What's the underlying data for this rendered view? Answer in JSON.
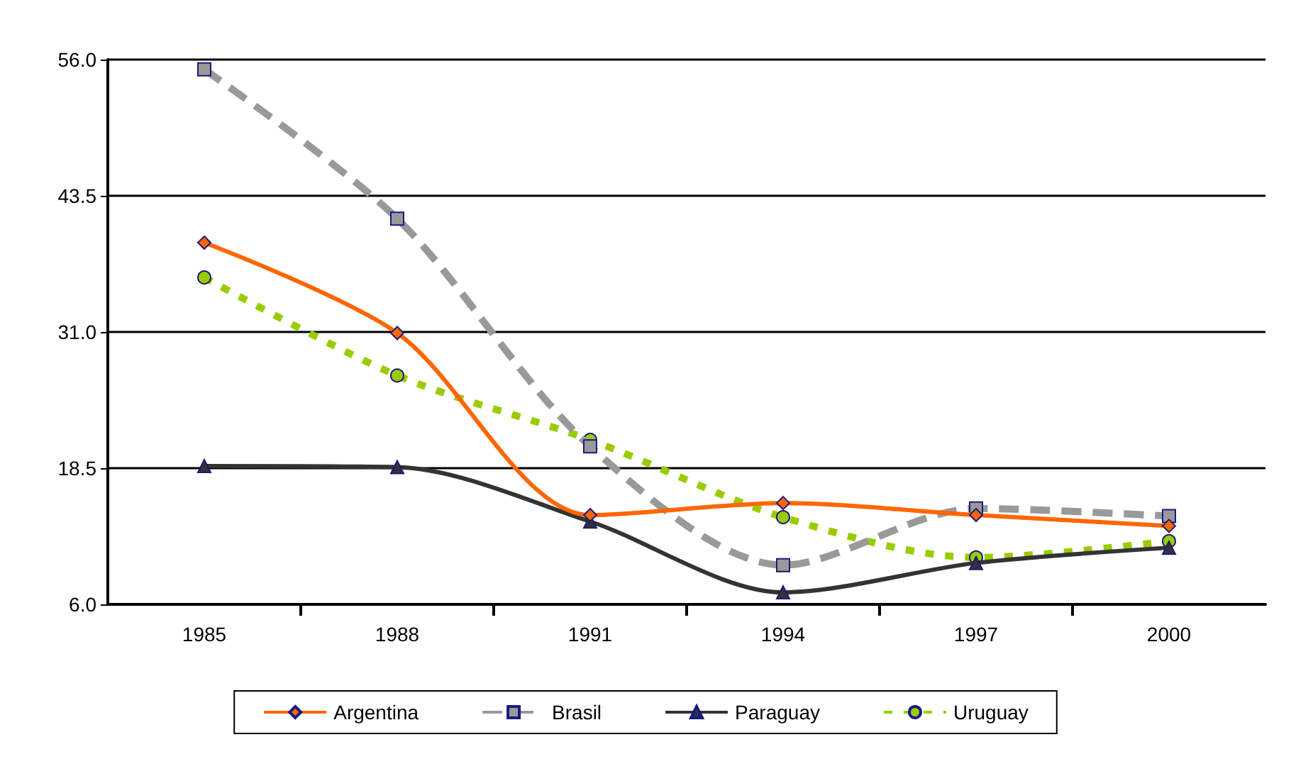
{
  "chart_data": {
    "type": "line",
    "x": [
      1985,
      1988,
      1991,
      1994,
      1997,
      2000
    ],
    "series": [
      {
        "name": "Argentina",
        "color": "#ff6600",
        "marker": "diamond",
        "line_style": "solid",
        "values": [
          39.2,
          30.9,
          14.2,
          15.3,
          14.2,
          13.2
        ]
      },
      {
        "name": "Brasil",
        "color": "#999999",
        "marker": "square",
        "line_style": "dashed",
        "values": [
          55.1,
          41.4,
          20.5,
          9.6,
          14.8,
          14.1
        ]
      },
      {
        "name": "Paraguay",
        "color": "#333333",
        "marker": "triangle",
        "line_style": "solid",
        "values": [
          18.7,
          18.6,
          13.6,
          7.1,
          9.8,
          11.2
        ]
      },
      {
        "name": "Uruguay",
        "color": "#99cc00",
        "marker": "circle",
        "line_style": "dotted",
        "values": [
          36.0,
          27.0,
          21.1,
          14.0,
          10.3,
          11.8
        ]
      }
    ],
    "xlim": [
      1983.5,
      2001.5
    ],
    "xticks": [
      1985,
      1988,
      1991,
      1994,
      1997,
      2000,
      {
        "value": 1986.5,
        "label": null
      },
      {
        "value": 1989.5,
        "label": null
      },
      {
        "value": 1992.5,
        "label": null
      },
      {
        "value": 1995.5,
        "label": null
      },
      {
        "value": 1998.5,
        "label": null
      }
    ],
    "ylim": [
      6,
      56
    ],
    "yticks": [
      {
        "value": 6,
        "label": "6.0"
      },
      {
        "value": 18.5,
        "label": "18.5"
      },
      {
        "value": 31,
        "label": "31.0"
      },
      {
        "value": 43.5,
        "label": "43.5"
      },
      {
        "value": 56,
        "label": "56.0"
      }
    ],
    "grid": "y",
    "legend": "bottom"
  }
}
